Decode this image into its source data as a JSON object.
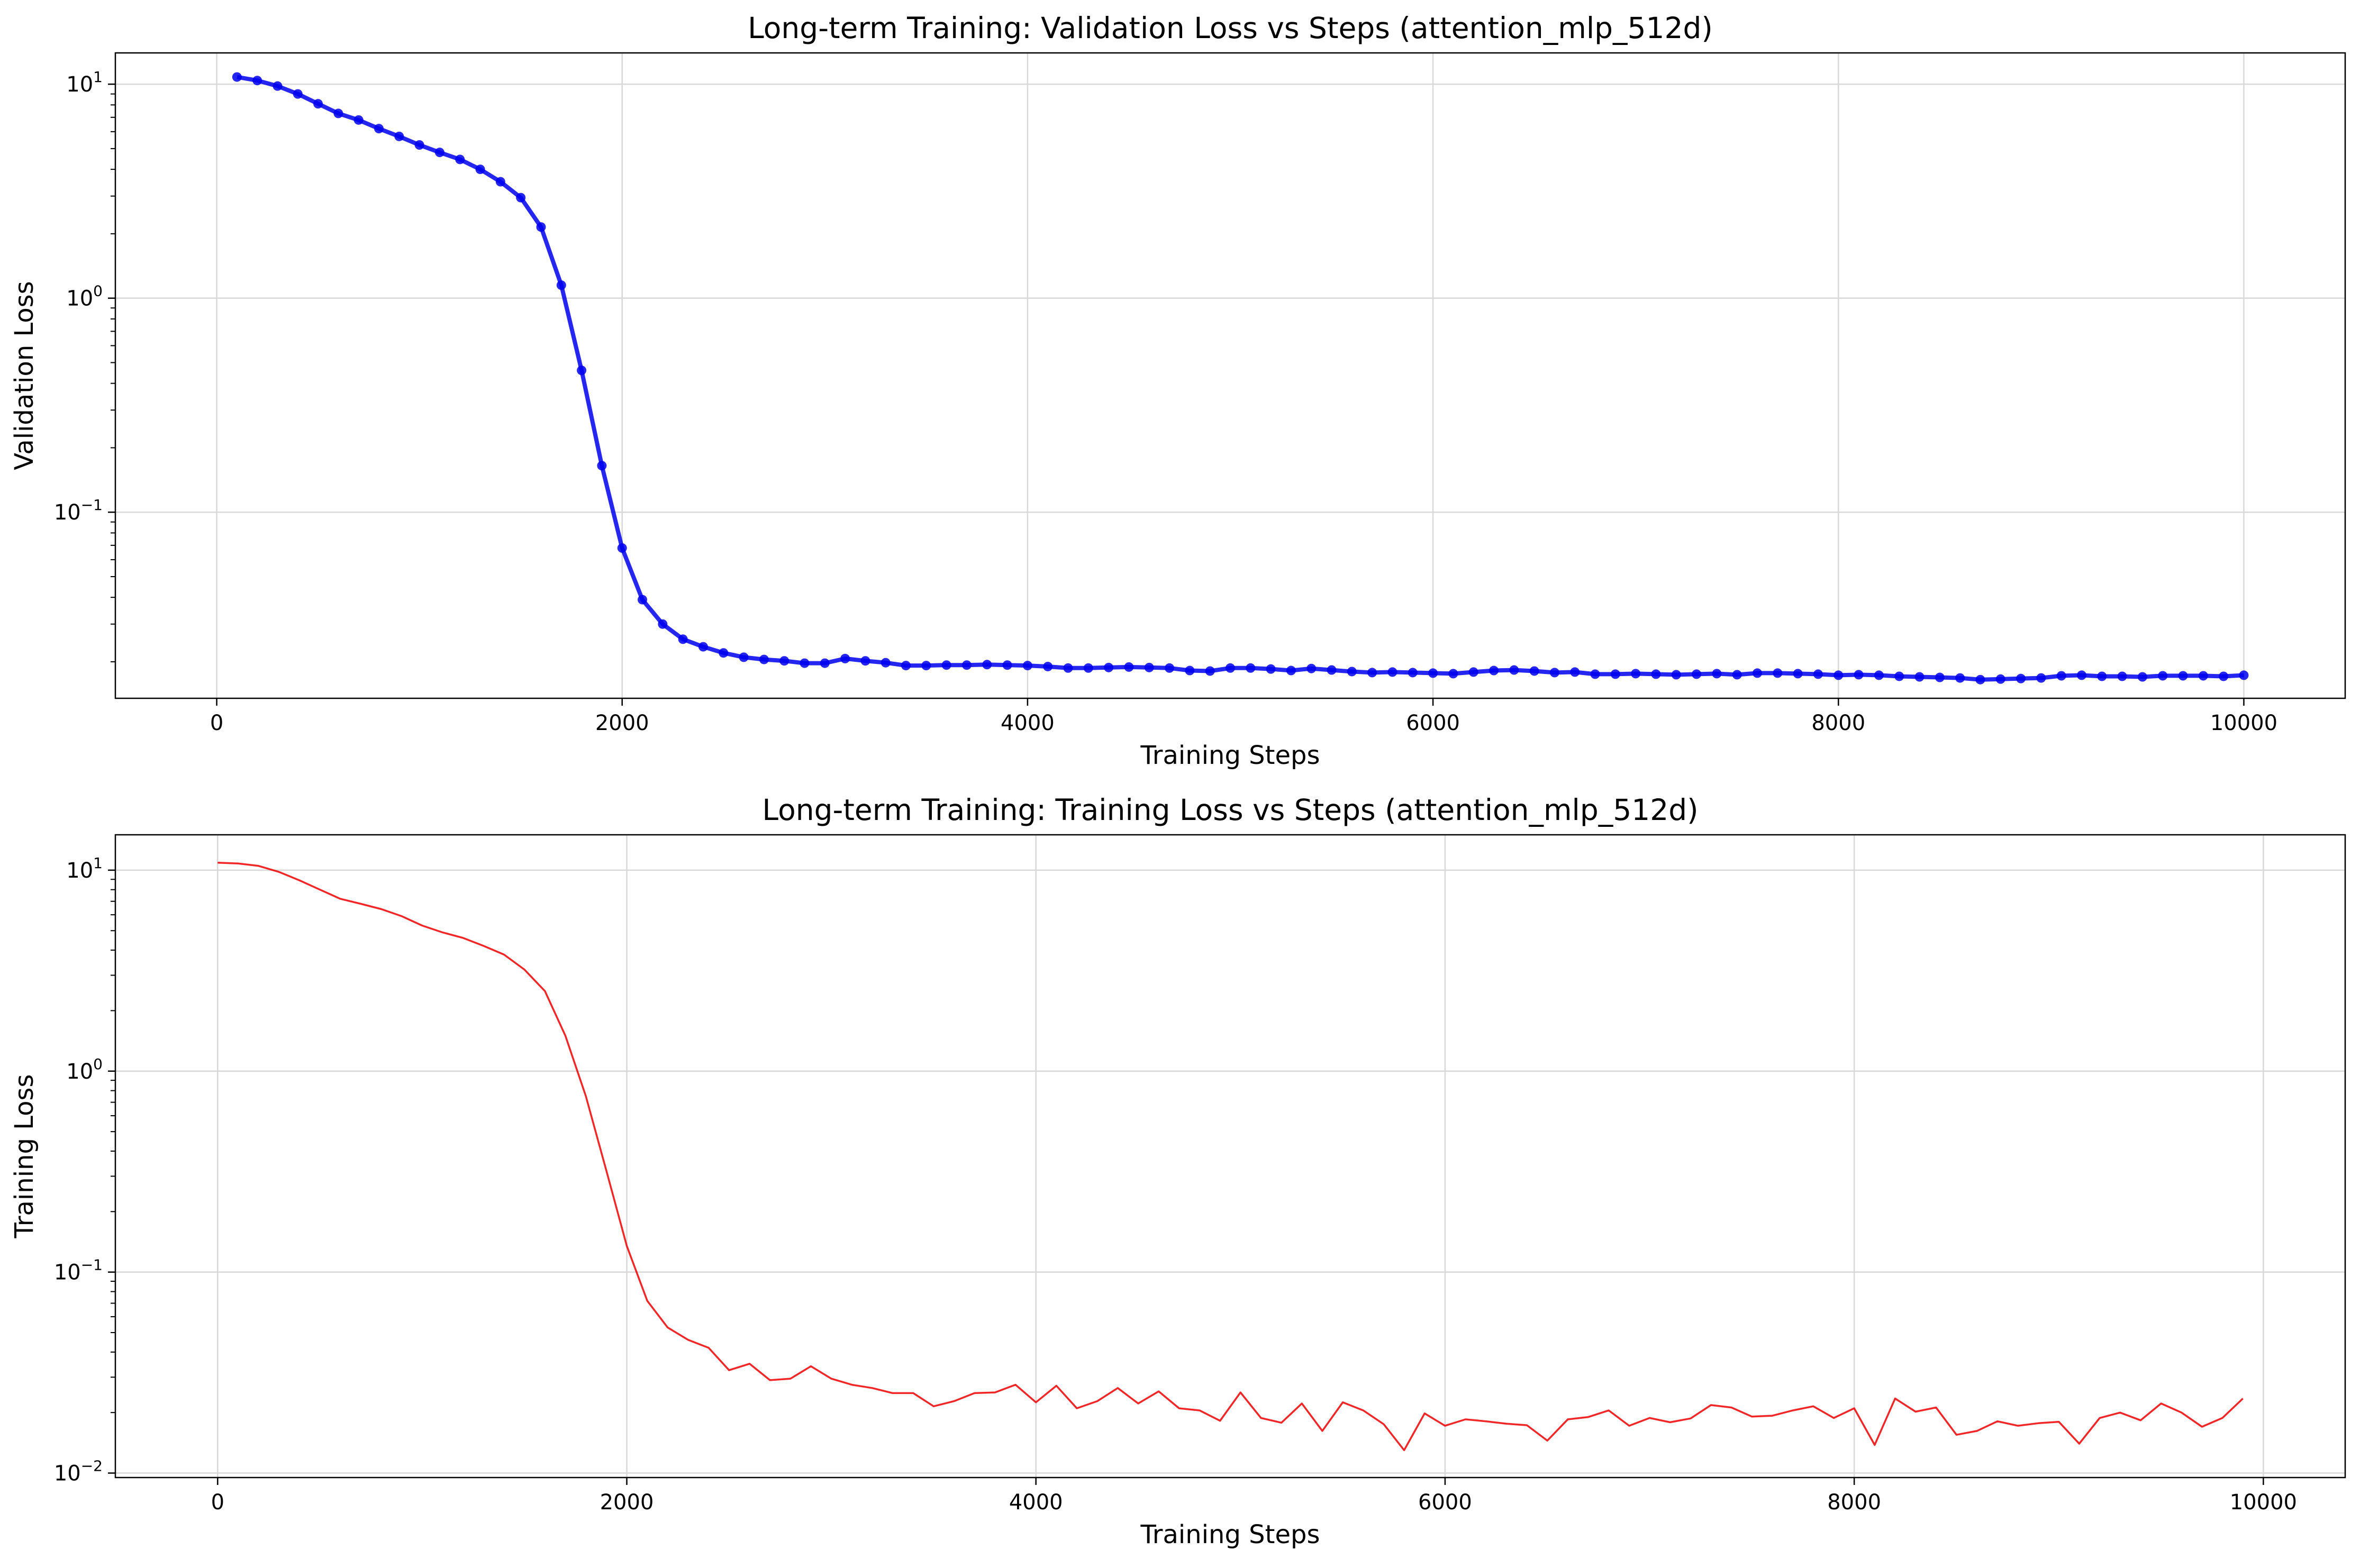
{
  "chart_data": [
    {
      "type": "line",
      "title": "Long-term Training: Validation Loss vs Steps (attention_mlp_512d)",
      "xlabel": "Training Steps",
      "ylabel": "Validation Loss",
      "yscale": "log",
      "xlim": [
        -500,
        10500
      ],
      "ylim": [
        0.0135,
        14
      ],
      "grid": true,
      "x_ticks": [
        0,
        2000,
        4000,
        6000,
        8000,
        10000
      ],
      "y_ticks": [
        {
          "value": 0.1,
          "base": "10",
          "exp": "−1"
        },
        {
          "value": 1,
          "base": "10",
          "exp": "0"
        },
        {
          "value": 10,
          "base": "10",
          "exp": "1"
        }
      ],
      "series": [
        {
          "color": "#0000ee",
          "markers": true,
          "x": [
            100,
            200,
            300,
            400,
            500,
            600,
            700,
            800,
            900,
            1000,
            1100,
            1200,
            1300,
            1400,
            1500,
            1600,
            1700,
            1800,
            1900,
            2000,
            2100,
            2200,
            2300,
            2400,
            2500,
            2600,
            2700,
            2800,
            2900,
            3000,
            3100,
            3200,
            3300,
            3400,
            3500,
            3600,
            3700,
            3800,
            3900,
            4000,
            4100,
            4200,
            4300,
            4400,
            4500,
            4600,
            4700,
            4800,
            4900,
            5000,
            5100,
            5200,
            5300,
            5400,
            5500,
            5600,
            5700,
            5800,
            5900,
            6000,
            6100,
            6200,
            6300,
            6400,
            6500,
            6600,
            6700,
            6800,
            6900,
            7000,
            7100,
            7200,
            7300,
            7400,
            7500,
            7600,
            7700,
            7800,
            7900,
            8000,
            8100,
            8200,
            8300,
            8400,
            8500,
            8600,
            8700,
            8800,
            8900,
            9000,
            9100,
            9200,
            9300,
            9400,
            9500,
            9600,
            9700,
            9800,
            9900,
            10000
          ],
          "values": [
            10.8,
            10.4,
            9.8,
            9.0,
            8.1,
            7.3,
            6.8,
            6.2,
            5.7,
            5.2,
            4.8,
            4.45,
            4.0,
            3.5,
            2.95,
            2.15,
            1.15,
            0.46,
            0.165,
            0.068,
            0.039,
            0.03,
            0.0255,
            0.0235,
            0.022,
            0.021,
            0.0205,
            0.0202,
            0.0197,
            0.0197,
            0.0207,
            0.0202,
            0.0198,
            0.0192,
            0.0192,
            0.0193,
            0.0193,
            0.0194,
            0.0193,
            0.0192,
            0.019,
            0.0187,
            0.0187,
            0.0188,
            0.0189,
            0.0188,
            0.0187,
            0.0182,
            0.0181,
            0.0187,
            0.0187,
            0.0185,
            0.0182,
            0.0186,
            0.0183,
            0.018,
            0.0178,
            0.0179,
            0.0178,
            0.0177,
            0.0176,
            0.0179,
            0.0182,
            0.0183,
            0.0181,
            0.0178,
            0.0179,
            0.0175,
            0.0175,
            0.0176,
            0.0175,
            0.0174,
            0.0175,
            0.0176,
            0.0174,
            0.0177,
            0.0177,
            0.0176,
            0.0175,
            0.0173,
            0.0174,
            0.0173,
            0.0171,
            0.017,
            0.0169,
            0.0168,
            0.0165,
            0.0166,
            0.0167,
            0.0168,
            0.0172,
            0.0173,
            0.0171,
            0.0171,
            0.017,
            0.0172,
            0.0172,
            0.0172,
            0.0171,
            0.0173
          ]
        }
      ]
    },
    {
      "type": "line",
      "title": "Long-term Training: Training Loss vs Steps (attention_mlp_512d)",
      "xlabel": "Training Steps",
      "ylabel": "Training Loss",
      "yscale": "log",
      "xlim": [
        -500,
        10400
      ],
      "ylim": [
        0.0095,
        15
      ],
      "grid": true,
      "x_ticks": [
        0,
        2000,
        4000,
        6000,
        8000,
        10000
      ],
      "y_ticks": [
        {
          "value": 0.01,
          "base": "10",
          "exp": "−2"
        },
        {
          "value": 0.1,
          "base": "10",
          "exp": "−1"
        },
        {
          "value": 1,
          "base": "10",
          "exp": "0"
        },
        {
          "value": 10,
          "base": "10",
          "exp": "1"
        }
      ],
      "series": [
        {
          "color": "#ee0000",
          "markers": false,
          "x": [
            0,
            100,
            200,
            300,
            400,
            500,
            600,
            700,
            800,
            900,
            1000,
            1100,
            1200,
            1300,
            1400,
            1500,
            1600,
            1700,
            1800,
            1900,
            2000,
            2100,
            2200,
            2300,
            2400,
            2500,
            2600,
            2700,
            2800,
            2900,
            3000,
            3100,
            3200,
            3300,
            3400,
            3500,
            3600,
            3700,
            3800,
            3900,
            4000,
            4100,
            4200,
            4300,
            4400,
            4500,
            4600,
            4700,
            4800,
            4900,
            5000,
            5100,
            5200,
            5300,
            5400,
            5500,
            5600,
            5700,
            5800,
            5900,
            6000,
            6100,
            6200,
            6300,
            6400,
            6500,
            6600,
            6700,
            6800,
            6900,
            7000,
            7100,
            7200,
            7300,
            7400,
            7500,
            7600,
            7700,
            7800,
            7900,
            8000,
            8100,
            8200,
            8300,
            8400,
            8500,
            8600,
            8700,
            8800,
            8900,
            9000,
            9100,
            9200,
            9300,
            9400,
            9500,
            9600,
            9700,
            9800,
            9900
          ],
          "values": [
            10.9,
            10.8,
            10.5,
            9.8,
            8.9,
            8.0,
            7.2,
            6.8,
            6.4,
            5.9,
            5.3,
            4.9,
            4.6,
            4.2,
            3.8,
            3.2,
            2.5,
            1.5,
            0.75,
            0.32,
            0.135,
            0.072,
            0.053,
            0.046,
            0.042,
            0.0325,
            0.035,
            0.029,
            0.0295,
            0.034,
            0.0295,
            0.0275,
            0.0265,
            0.025,
            0.025,
            0.0215,
            0.0228,
            0.025,
            0.0252,
            0.0275,
            0.0225,
            0.0272,
            0.021,
            0.0228,
            0.0265,
            0.0222,
            0.0255,
            0.021,
            0.0205,
            0.0182,
            0.0252,
            0.0188,
            0.0178,
            0.0222,
            0.0162,
            0.0225,
            0.0205,
            0.0175,
            0.013,
            0.0198,
            0.0172,
            0.0185,
            0.0181,
            0.0176,
            0.0173,
            0.0145,
            0.0185,
            0.019,
            0.0205,
            0.0172,
            0.0188,
            0.0179,
            0.0187,
            0.0218,
            0.0212,
            0.0191,
            0.0193,
            0.0205,
            0.0215,
            0.0188,
            0.021,
            0.0138,
            0.0235,
            0.0202,
            0.0212,
            0.0155,
            0.0162,
            0.0181,
            0.0172,
            0.0177,
            0.018,
            0.014,
            0.0188,
            0.02,
            0.0183,
            0.0222,
            0.02,
            0.017,
            0.0188,
            0.0235
          ]
        }
      ]
    }
  ]
}
